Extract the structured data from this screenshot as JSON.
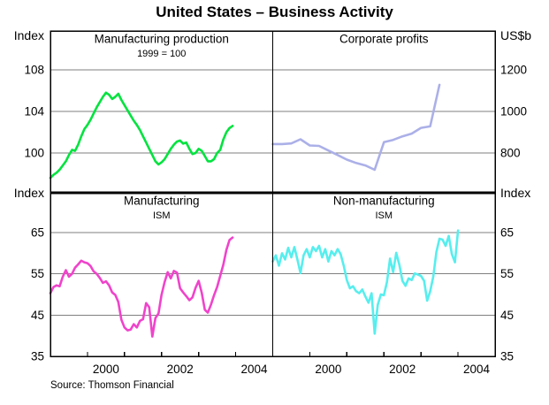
{
  "title": "United States – Business Activity",
  "source": "Source: Thomson Financial",
  "axis_corner_labels": {
    "top_left": "Index",
    "top_right": "US$b",
    "mid_left": "Index",
    "mid_right": "Index"
  },
  "colors": {
    "manufacturing_production": "#00e33e",
    "corporate_profits": "#abb0e8",
    "manufacturing_ism": "#f043cb",
    "non_manufacturing_ism": "#57eeee",
    "gridline": "#7f7f7f",
    "frame": "#000000"
  },
  "x_axis": {
    "start_year": 1999,
    "end_year": 2005,
    "tick_years": [
      1999,
      2000,
      2001,
      2002,
      2003,
      2004,
      2005
    ],
    "labels": [
      2000,
      2002,
      2004
    ]
  },
  "chart_data": [
    {
      "type": "line",
      "panel": "top-left",
      "title": "Manufacturing production",
      "subtitle": "1999 = 100",
      "unit": "Index",
      "side": "left",
      "color_key": "manufacturing_production",
      "ylim": [
        96.17,
        111.74
      ],
      "gridlines": [
        100,
        104,
        108
      ],
      "tick_values": [
        108,
        104,
        100
      ],
      "x_start": 1999.0,
      "x_step": 0.0833333,
      "values": [
        97.6,
        97.9,
        98.1,
        98.4,
        98.8,
        99.2,
        99.8,
        100.3,
        100.2,
        100.8,
        101.6,
        102.3,
        102.7,
        103.2,
        103.8,
        104.4,
        104.9,
        105.4,
        105.8,
        105.6,
        105.2,
        105.4,
        105.7,
        105.1,
        104.6,
        104.1,
        103.6,
        103.1,
        102.7,
        102.2,
        101.6,
        101.0,
        100.4,
        99.8,
        99.2,
        98.9,
        99.1,
        99.4,
        99.9,
        100.4,
        100.8,
        101.1,
        101.2,
        100.9,
        101.0,
        100.4,
        99.9,
        100.0,
        100.4,
        100.2,
        99.7,
        99.2,
        99.2,
        99.4,
        100.0,
        100.3,
        101.3,
        102.0,
        102.4,
        102.6
      ]
    },
    {
      "type": "line",
      "panel": "top-right",
      "title": "Corporate profits",
      "subtitle": "",
      "unit": "US$b",
      "side": "right",
      "color_key": "corporate_profits",
      "ylim": [
        608.5,
        1387.2
      ],
      "gridlines": [
        800,
        1000,
        1200
      ],
      "tick_values": [
        1200,
        1000,
        800
      ],
      "x_start": 1999.0,
      "x_step": 0.25,
      "values": [
        843,
        843,
        846,
        866,
        836,
        834,
        812,
        790,
        768,
        752,
        740,
        719,
        852,
        863,
        880,
        893,
        921,
        928,
        1128
      ]
    },
    {
      "type": "line",
      "panel": "bottom-left",
      "title": "Manufacturing",
      "subtitle": "ISM",
      "unit": "Index",
      "side": "left",
      "color_key": "manufacturing_ism",
      "ylim": [
        35,
        74.65
      ],
      "gridlines": [
        45,
        55,
        65
      ],
      "tick_values": [
        65,
        55,
        45,
        35
      ],
      "x_start": 1999.0,
      "x_step": 0.0833333,
      "values": [
        50.3,
        51.8,
        52.2,
        52.0,
        54.3,
        55.9,
        54.3,
        55.0,
        56.5,
        57.3,
        58.2,
        57.8,
        57.6,
        56.9,
        55.6,
        55.0,
        54.0,
        52.8,
        53.2,
        52.2,
        50.5,
        49.9,
        48.2,
        43.9,
        42.0,
        41.3,
        41.5,
        42.8,
        42.0,
        43.6,
        44.0,
        47.9,
        46.9,
        39.8,
        44.3,
        45.4,
        49.9,
        53.0,
        55.4,
        53.9,
        55.7,
        55.3,
        51.5,
        50.5,
        49.6,
        48.6,
        49.3,
        51.6,
        53.3,
        50.4,
        46.3,
        45.6,
        47.5,
        49.8,
        51.8,
        54.5,
        57.2,
        60.8,
        63.2,
        63.8
      ]
    },
    {
      "type": "line",
      "panel": "bottom-right",
      "title": "Non-manufacturing",
      "subtitle": "ISM",
      "unit": "Index",
      "side": "right",
      "color_key": "non_manufacturing_ism",
      "ylim": [
        35,
        74.65
      ],
      "gridlines": [
        45,
        55,
        65
      ],
      "tick_values": [
        65,
        55,
        45,
        35
      ],
      "x_start": 1999.0,
      "x_step": 0.0833333,
      "values": [
        58.0,
        59.5,
        57.0,
        60.0,
        58.5,
        61.3,
        59.0,
        61.5,
        58.5,
        55.2,
        59.5,
        61.0,
        59.0,
        61.5,
        60.5,
        61.8,
        59.0,
        61.0,
        58.0,
        60.5,
        59.5,
        61.0,
        59.8,
        57.0,
        53.5,
        51.5,
        52.0,
        50.8,
        50.3,
        51.2,
        49.5,
        48.0,
        50.3,
        40.5,
        47.5,
        50.0,
        49.8,
        53.0,
        58.7,
        55.4,
        60.1,
        57.2,
        53.3,
        52.1,
        53.9,
        53.5,
        55.1,
        54.8,
        54.5,
        53.3,
        48.5,
        50.8,
        54.3,
        60.3,
        63.5,
        63.3,
        61.8,
        64.2,
        59.8,
        57.8,
        65.5
      ]
    }
  ]
}
